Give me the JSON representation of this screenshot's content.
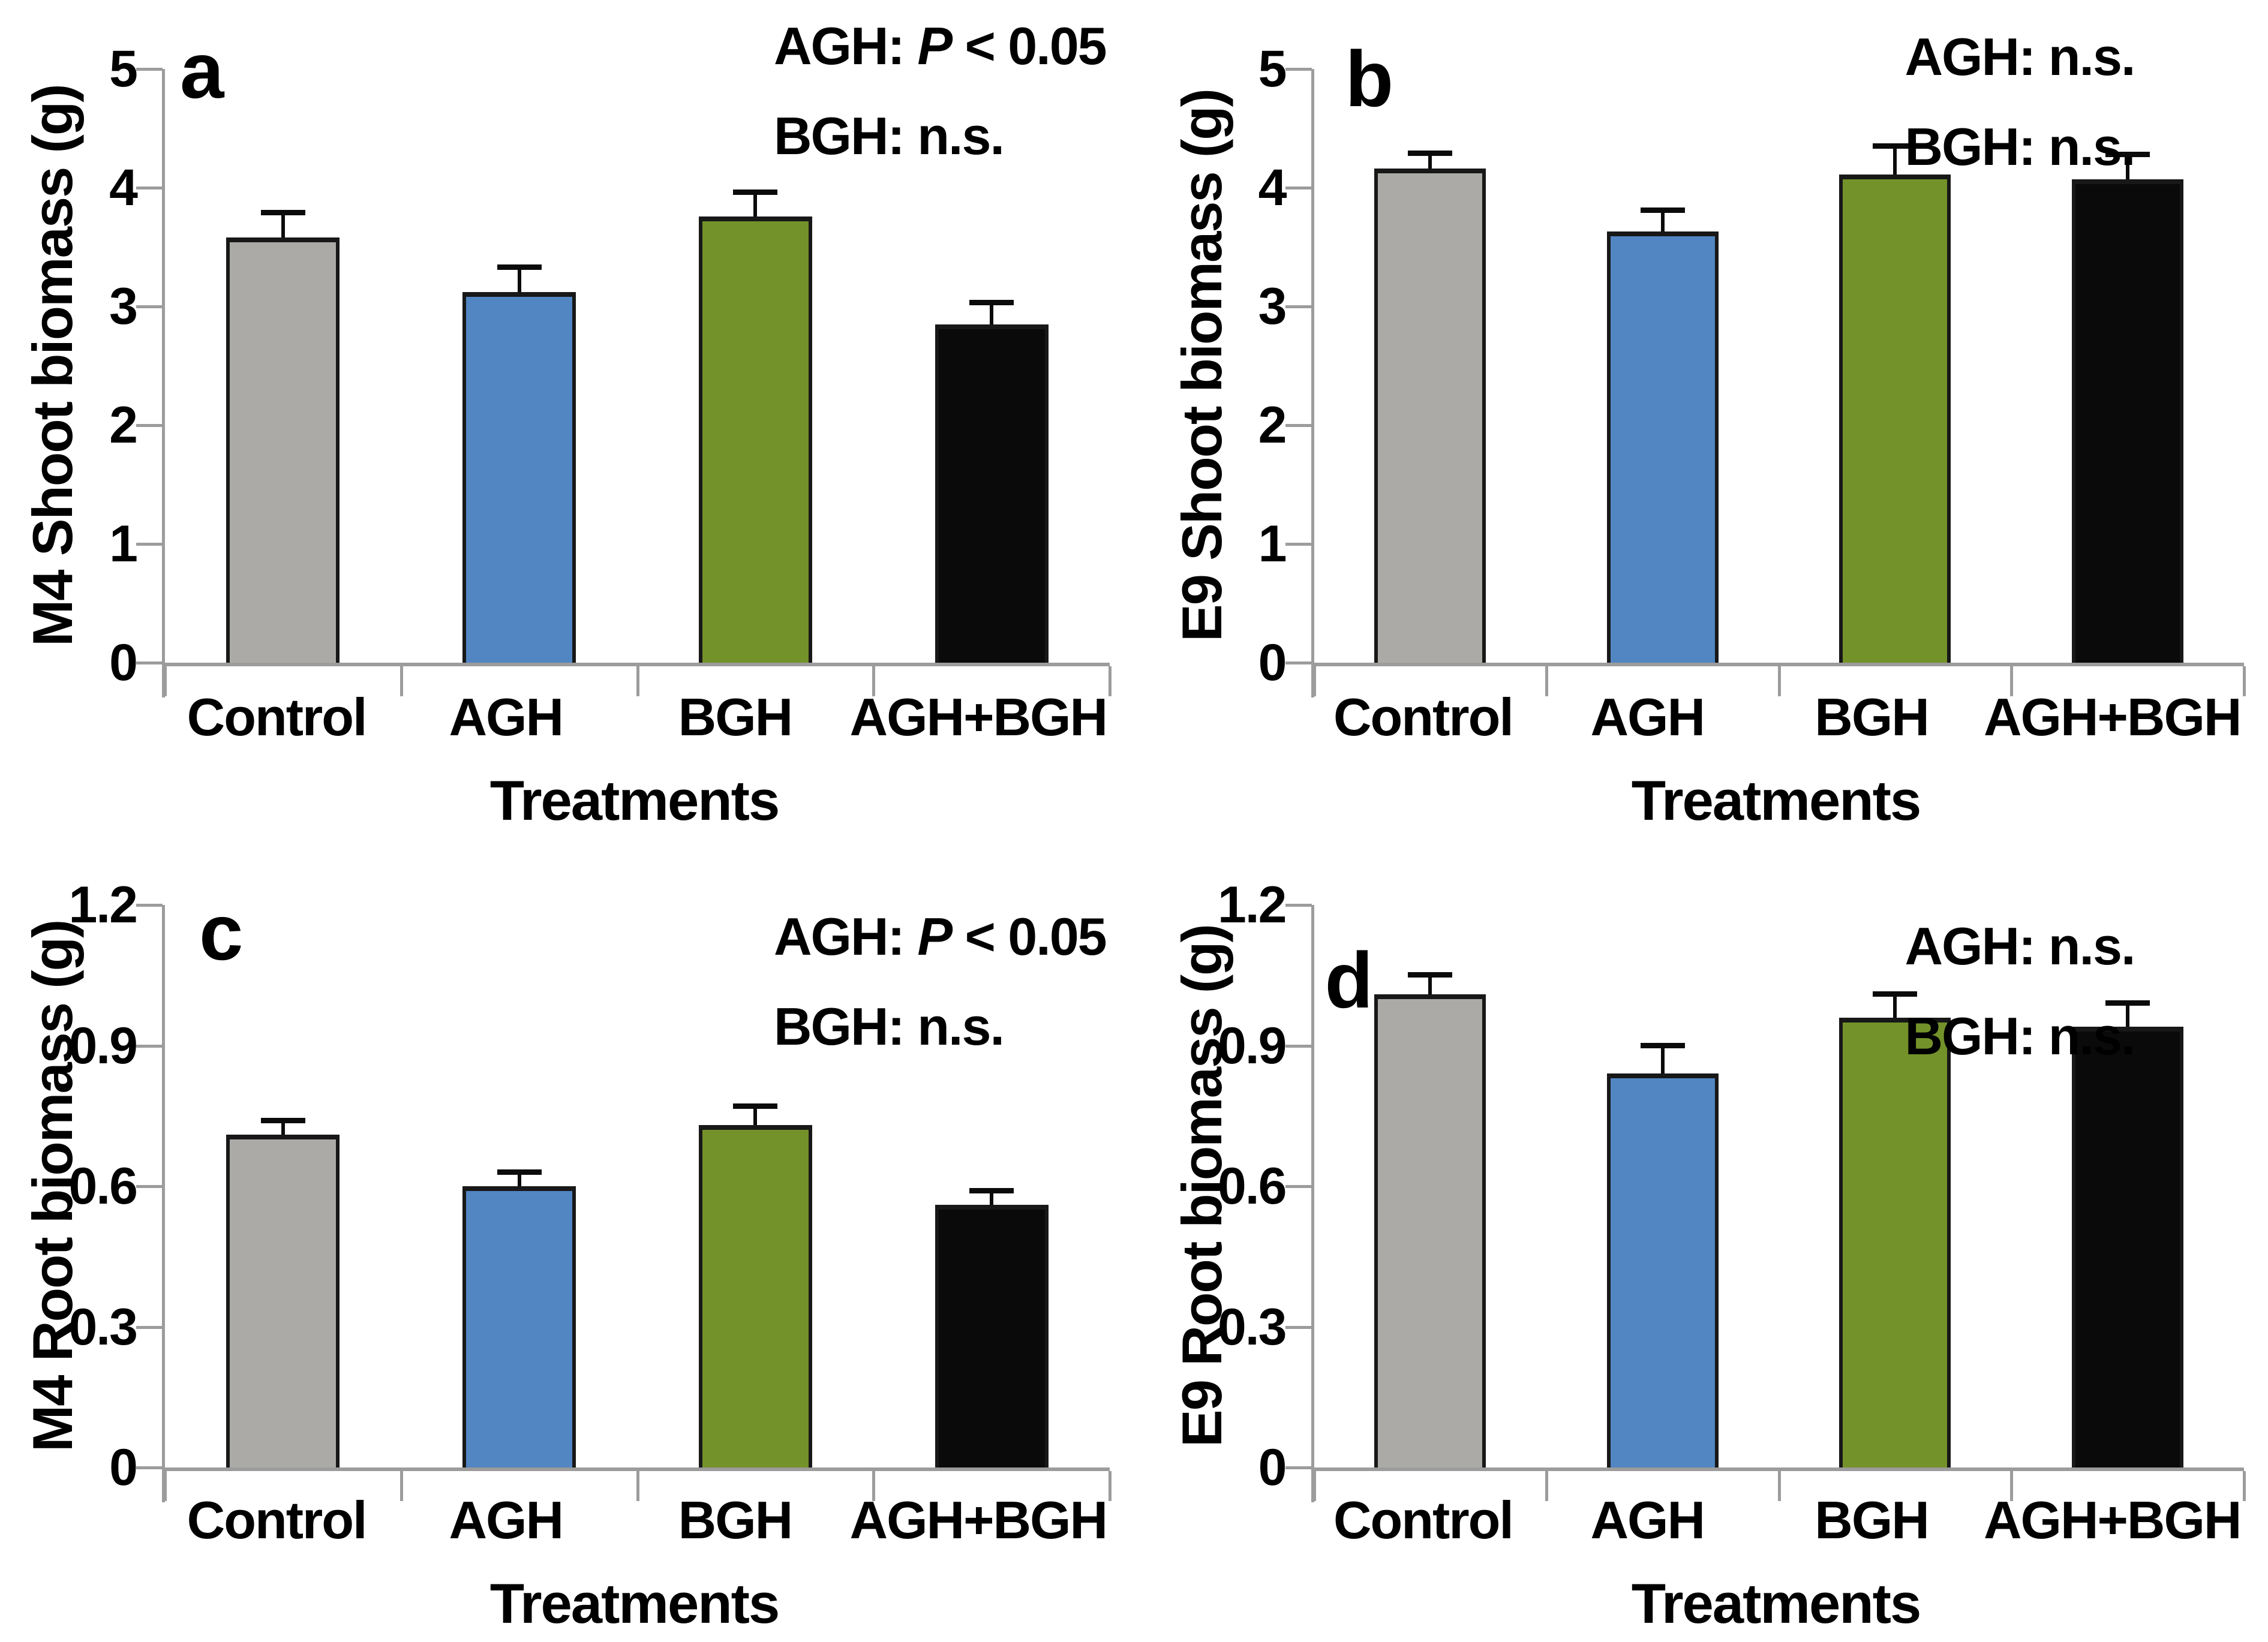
{
  "figure": {
    "background": "#FFFFFF",
    "colors": {
      "bar_fills": [
        "#ABAAA6",
        "#5286C3",
        "#739229",
        "#0A0A0A"
      ],
      "bar_border": "#181818",
      "error_bar": "#0B0B0B",
      "axis": "#9C9C9C",
      "text": "#000000"
    }
  },
  "chart_data": [
    {
      "type": "bar",
      "panel_letter": "a",
      "ylabel": "M4 Shoot biomass (g)",
      "xlabel": "Treatments",
      "categories": [
        "Control",
        "AGH",
        "BGH",
        "AGH+BGH"
      ],
      "values": [
        3.58,
        3.12,
        3.76,
        2.85
      ],
      "errors_plus": [
        0.21,
        0.21,
        0.2,
        0.18
      ],
      "ylim": [
        0,
        5
      ],
      "y_ticks": [
        "5",
        "4",
        "3",
        "2",
        "1",
        "0"
      ],
      "grid": false,
      "legend": null,
      "annotation_lines": [
        [
          {
            "t": "AGH: "
          },
          {
            "t": "P",
            "i": true
          },
          {
            "t": " < 0.05"
          }
        ],
        [
          {
            "t": "BGH: n.s."
          }
        ]
      ]
    },
    {
      "type": "bar",
      "panel_letter": "b",
      "ylabel": "E9 Shoot biomass (g)",
      "xlabel": "Treatments",
      "categories": [
        "Control",
        "AGH",
        "BGH",
        "AGH+BGH"
      ],
      "values": [
        4.16,
        3.63,
        4.11,
        4.07
      ],
      "errors_plus": [
        0.13,
        0.18,
        0.24,
        0.21
      ],
      "ylim": [
        0,
        5
      ],
      "y_ticks": [
        "5",
        "4",
        "3",
        "2",
        "1",
        "0"
      ],
      "grid": false,
      "legend": null,
      "annotation_lines": [
        [
          {
            "t": "AGH: n.s."
          }
        ],
        [
          {
            "t": "BGH: n.s."
          }
        ]
      ]
    },
    {
      "type": "bar",
      "panel_letter": "c",
      "ylabel": "M4 Root biomass (g)",
      "xlabel": "Treatments",
      "categories": [
        "Control",
        "AGH",
        "BGH",
        "AGH+BGH"
      ],
      "values": [
        0.71,
        0.6,
        0.73,
        0.56
      ],
      "errors_plus": [
        0.03,
        0.03,
        0.04,
        0.03
      ],
      "ylim": [
        0,
        1.2
      ],
      "y_ticks": [
        "1.2",
        "0.9",
        "0.6",
        "0.3",
        "0"
      ],
      "grid": false,
      "legend": null,
      "annotation_lines": [
        [
          {
            "t": "AGH: "
          },
          {
            "t": "P",
            "i": true
          },
          {
            "t": " < 0.05"
          }
        ],
        [
          {
            "t": "BGH: n.s."
          }
        ]
      ]
    },
    {
      "type": "bar",
      "panel_letter": "d",
      "ylabel": "E9 Root biomass (g)",
      "xlabel": "Treatments",
      "categories": [
        "Control",
        "AGH",
        "BGH",
        "AGH+BGH"
      ],
      "values": [
        1.01,
        0.84,
        0.96,
        0.94
      ],
      "errors_plus": [
        0.04,
        0.06,
        0.05,
        0.05
      ],
      "ylim": [
        0,
        1.2
      ],
      "y_ticks": [
        "1.2",
        "0.9",
        "0.6",
        "0.3",
        "0"
      ],
      "grid": false,
      "legend": null,
      "annotation_lines": [
        [
          {
            "t": "AGH: n.s."
          }
        ],
        [
          {
            "t": "BGH: n.s."
          }
        ]
      ]
    }
  ]
}
